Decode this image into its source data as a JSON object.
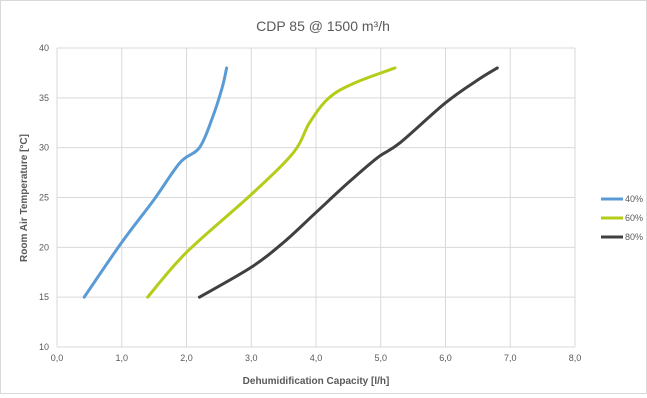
{
  "chart_data": {
    "type": "line",
    "title": "CDP 85 @ 1500 m³/h",
    "xlabel": "Dehumidification Capacity [l/h]",
    "ylabel": "Room Air  Temperature [°C]",
    "xlim": [
      0,
      8
    ],
    "ylim": [
      10,
      40
    ],
    "x_ticks": [
      "0,0",
      "1,0",
      "2,0",
      "3,0",
      "4,0",
      "5,0",
      "6,0",
      "7,0",
      "8,0"
    ],
    "y_ticks": [
      "10",
      "15",
      "20",
      "25",
      "30",
      "35",
      "40"
    ],
    "grid": true,
    "legend_position": "right",
    "series": [
      {
        "name": "40%",
        "color": "#5b9bd5",
        "points": [
          [
            0.42,
            15
          ],
          [
            1.0,
            20.5
          ],
          [
            1.5,
            24.8
          ],
          [
            1.9,
            28.5
          ],
          [
            2.2,
            30
          ],
          [
            2.4,
            33
          ],
          [
            2.55,
            36
          ],
          [
            2.62,
            38
          ]
        ]
      },
      {
        "name": "60%",
        "color": "#b5cc18",
        "points": [
          [
            1.4,
            15
          ],
          [
            2.0,
            19.5
          ],
          [
            3.0,
            25.3
          ],
          [
            3.65,
            29.5
          ],
          [
            3.9,
            32.5
          ],
          [
            4.2,
            35
          ],
          [
            4.6,
            36.5
          ],
          [
            5.22,
            38
          ]
        ]
      },
      {
        "name": "80%",
        "color": "#404040",
        "points": [
          [
            2.2,
            15
          ],
          [
            3.0,
            18
          ],
          [
            3.5,
            20.5
          ],
          [
            4.0,
            23.5
          ],
          [
            4.5,
            26.5
          ],
          [
            4.95,
            29
          ],
          [
            5.3,
            30.5
          ],
          [
            6.0,
            34.5
          ],
          [
            6.5,
            36.8
          ],
          [
            6.8,
            38
          ]
        ]
      }
    ]
  }
}
